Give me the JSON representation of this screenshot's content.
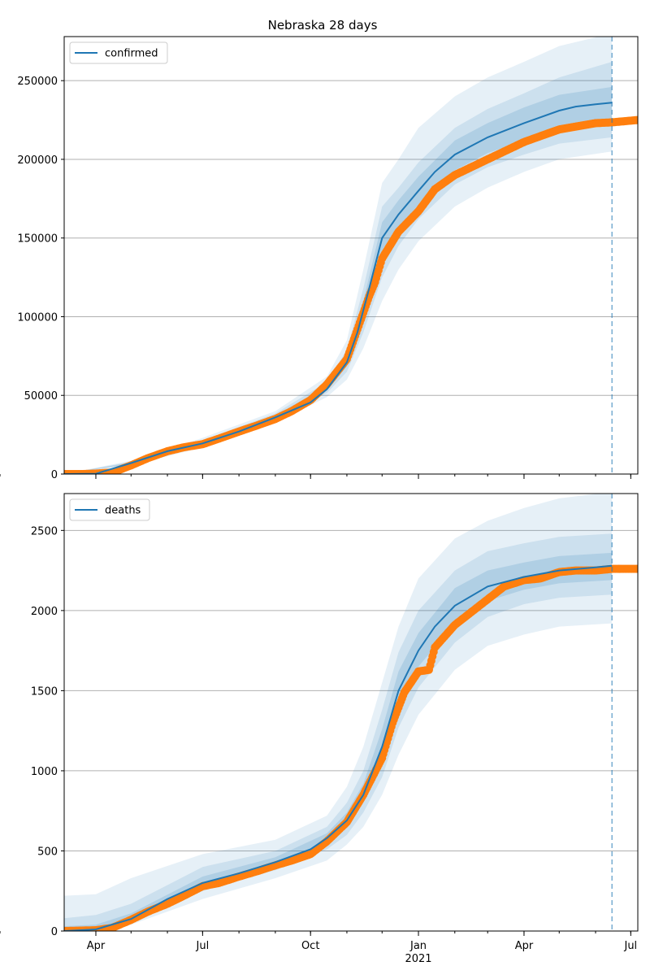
{
  "figure": {
    "title": "Nebraska 28 days"
  },
  "colors": {
    "model": "#1f77b4",
    "observed": "#ff7f0e",
    "grid": "#b0b0b0",
    "band": "#1f77b4"
  },
  "x_axis": {
    "ticks": [
      {
        "date": "2020-04-01",
        "label": "Apr"
      },
      {
        "date": "2020-07-01",
        "label": "Jul"
      },
      {
        "date": "2020-10-01",
        "label": "Oct"
      },
      {
        "date": "2021-01-01",
        "label": "Jan"
      },
      {
        "date": "2021-04-01",
        "label": "Apr"
      },
      {
        "date": "2021-07-01",
        "label": "Jul"
      }
    ],
    "year_label": "2021",
    "minor_ticks_monthly": true
  },
  "chart_data": [
    {
      "type": "line",
      "legend": "confirmed",
      "legend_position": "upper-left",
      "xlim": [
        "2020-03-05",
        "2021-07-07"
      ],
      "ylim": [
        0,
        278000
      ],
      "yticks": [
        0,
        50000,
        100000,
        150000,
        200000,
        250000
      ],
      "grid_y": true,
      "forecast_start": "2021-06-15",
      "model_curve": [
        [
          "2020-03-05",
          0
        ],
        [
          "2020-04-01",
          200
        ],
        [
          "2020-05-01",
          7000
        ],
        [
          "2020-06-01",
          14500
        ],
        [
          "2020-07-01",
          19500
        ],
        [
          "2020-08-01",
          27000
        ],
        [
          "2020-09-01",
          36000
        ],
        [
          "2020-10-01",
          45500
        ],
        [
          "2020-10-15",
          54000
        ],
        [
          "2020-11-01",
          71000
        ],
        [
          "2020-11-10",
          90000
        ],
        [
          "2020-11-20",
          118000
        ],
        [
          "2020-12-01",
          150000
        ],
        [
          "2020-12-15",
          165000
        ],
        [
          "2021-01-01",
          180000
        ],
        [
          "2021-01-15",
          192000
        ],
        [
          "2021-02-01",
          203000
        ],
        [
          "2021-03-01",
          214000
        ],
        [
          "2021-04-01",
          223000
        ],
        [
          "2021-05-01",
          231000
        ],
        [
          "2021-05-15",
          233500
        ],
        [
          "2021-06-01",
          235000
        ],
        [
          "2021-06-15",
          236000
        ]
      ],
      "observed": [
        [
          "2020-03-05",
          0
        ],
        [
          "2020-03-20",
          0
        ],
        [
          "2020-04-01",
          300
        ],
        [
          "2020-04-15",
          1000
        ],
        [
          "2020-05-01",
          5500
        ],
        [
          "2020-05-15",
          10000
        ],
        [
          "2020-06-01",
          14500
        ],
        [
          "2020-06-15",
          17000
        ],
        [
          "2020-07-01",
          19000
        ],
        [
          "2020-07-15",
          22500
        ],
        [
          "2020-08-01",
          27000
        ],
        [
          "2020-08-15",
          30500
        ],
        [
          "2020-09-01",
          35000
        ],
        [
          "2020-09-15",
          40000
        ],
        [
          "2020-10-01",
          47000
        ],
        [
          "2020-10-15",
          57000
        ],
        [
          "2020-11-01",
          73000
        ],
        [
          "2020-11-10",
          92000
        ],
        [
          "2020-11-20",
          113000
        ],
        [
          "2020-11-25",
          122000
        ],
        [
          "2020-12-01",
          137000
        ],
        [
          "2020-12-15",
          154000
        ],
        [
          "2021-01-01",
          167000
        ],
        [
          "2021-01-15",
          181000
        ],
        [
          "2021-02-01",
          190000
        ],
        [
          "2021-03-01",
          200000
        ],
        [
          "2021-04-01",
          211000
        ],
        [
          "2021-05-01",
          219000
        ],
        [
          "2021-06-01",
          223000
        ],
        [
          "2021-06-15",
          223500
        ],
        [
          "2021-07-07",
          225000
        ]
      ],
      "band_outer": [
        [
          "2020-03-05",
          0,
          0
        ],
        [
          "2020-05-01",
          5500,
          8500
        ],
        [
          "2020-07-01",
          17000,
          23000
        ],
        [
          "2020-09-01",
          32500,
          40000
        ],
        [
          "2020-10-15",
          49000,
          62000
        ],
        [
          "2020-11-01",
          60000,
          85000
        ],
        [
          "2020-11-15",
          80000,
          130000
        ],
        [
          "2020-12-01",
          110000,
          185000
        ],
        [
          "2020-12-15",
          130000,
          200000
        ],
        [
          "2021-01-01",
          148000,
          220000
        ],
        [
          "2021-02-01",
          170000,
          240000
        ],
        [
          "2021-03-01",
          182000,
          252000
        ],
        [
          "2021-04-01",
          192000,
          262000
        ],
        [
          "2021-05-01",
          200000,
          272000
        ],
        [
          "2021-06-15",
          205000,
          280000
        ]
      ],
      "band_mid": [
        [
          "2020-03-05",
          0,
          0
        ],
        [
          "2020-05-01",
          6200,
          7800
        ],
        [
          "2020-07-01",
          18200,
          21500
        ],
        [
          "2020-09-01",
          34000,
          38500
        ],
        [
          "2020-10-15",
          51500,
          58500
        ],
        [
          "2020-11-01",
          65000,
          79000
        ],
        [
          "2020-11-15",
          90000,
          118000
        ],
        [
          "2020-12-01",
          125000,
          170000
        ],
        [
          "2020-12-15",
          145000,
          182000
        ],
        [
          "2021-01-01",
          162000,
          198000
        ],
        [
          "2021-02-01",
          184000,
          220000
        ],
        [
          "2021-03-01",
          195000,
          232000
        ],
        [
          "2021-04-01",
          203000,
          242000
        ],
        [
          "2021-05-01",
          210000,
          252000
        ],
        [
          "2021-06-15",
          214000,
          262000
        ]
      ],
      "band_inner": [
        [
          "2020-03-05",
          0,
          0
        ],
        [
          "2020-05-01",
          6600,
          7400
        ],
        [
          "2020-07-01",
          18800,
          20500
        ],
        [
          "2020-09-01",
          35000,
          37200
        ],
        [
          "2020-10-15",
          53000,
          56000
        ],
        [
          "2020-11-01",
          68500,
          74500
        ],
        [
          "2020-11-15",
          97000,
          110000
        ],
        [
          "2020-12-01",
          137000,
          160000
        ],
        [
          "2020-12-15",
          155000,
          174000
        ],
        [
          "2021-01-01",
          171000,
          189000
        ],
        [
          "2021-02-01",
          193000,
          212000
        ],
        [
          "2021-03-01",
          204000,
          223000
        ],
        [
          "2021-04-01",
          212000,
          233000
        ],
        [
          "2021-05-01",
          220000,
          241000
        ],
        [
          "2021-06-15",
          224000,
          246000
        ]
      ]
    },
    {
      "type": "line",
      "legend": "deaths",
      "legend_position": "upper-left",
      "xlim": [
        "2020-03-05",
        "2021-07-07"
      ],
      "ylim": [
        0,
        2730
      ],
      "yticks": [
        0,
        500,
        1000,
        1500,
        2000,
        2500
      ],
      "grid_y": true,
      "forecast_start": "2021-06-15",
      "model_curve": [
        [
          "2020-03-05",
          0
        ],
        [
          "2020-04-01",
          10
        ],
        [
          "2020-05-01",
          75
        ],
        [
          "2020-06-01",
          200
        ],
        [
          "2020-07-01",
          300
        ],
        [
          "2020-08-01",
          360
        ],
        [
          "2020-09-01",
          430
        ],
        [
          "2020-10-01",
          510
        ],
        [
          "2020-10-15",
          580
        ],
        [
          "2020-11-01",
          690
        ],
        [
          "2020-11-15",
          850
        ],
        [
          "2020-12-01",
          1150
        ],
        [
          "2020-12-15",
          1500
        ],
        [
          "2021-01-01",
          1750
        ],
        [
          "2021-01-15",
          1900
        ],
        [
          "2021-02-01",
          2030
        ],
        [
          "2021-03-01",
          2150
        ],
        [
          "2021-04-01",
          2210
        ],
        [
          "2021-05-01",
          2250
        ],
        [
          "2021-06-01",
          2270
        ],
        [
          "2021-06-15",
          2280
        ]
      ],
      "observed": [
        [
          "2020-03-05",
          0
        ],
        [
          "2020-04-01",
          5
        ],
        [
          "2020-04-15",
          20
        ],
        [
          "2020-05-01",
          70
        ],
        [
          "2020-05-15",
          120
        ],
        [
          "2020-06-01",
          170
        ],
        [
          "2020-06-15",
          220
        ],
        [
          "2020-07-01",
          280
        ],
        [
          "2020-07-15",
          300
        ],
        [
          "2020-08-01",
          340
        ],
        [
          "2020-08-15",
          370
        ],
        [
          "2020-09-01",
          410
        ],
        [
          "2020-09-15",
          440
        ],
        [
          "2020-10-01",
          480
        ],
        [
          "2020-10-15",
          560
        ],
        [
          "2020-11-01",
          680
        ],
        [
          "2020-11-15",
          850
        ],
        [
          "2020-12-01",
          1080
        ],
        [
          "2020-12-10",
          1300
        ],
        [
          "2020-12-20",
          1490
        ],
        [
          "2021-01-01",
          1620
        ],
        [
          "2021-01-10",
          1630
        ],
        [
          "2021-01-15",
          1770
        ],
        [
          "2021-02-01",
          1910
        ],
        [
          "2021-02-15",
          1990
        ],
        [
          "2021-03-01",
          2070
        ],
        [
          "2021-03-15",
          2150
        ],
        [
          "2021-04-01",
          2190
        ],
        [
          "2021-04-15",
          2200
        ],
        [
          "2021-05-01",
          2240
        ],
        [
          "2021-05-15",
          2250
        ],
        [
          "2021-06-01",
          2250
        ],
        [
          "2021-06-15",
          2260
        ],
        [
          "2021-07-07",
          2260
        ]
      ],
      "band_outer": [
        [
          "2020-03-05",
          0,
          220
        ],
        [
          "2020-04-01",
          0,
          230
        ],
        [
          "2020-05-01",
          40,
          330
        ],
        [
          "2020-07-01",
          200,
          480
        ],
        [
          "2020-09-01",
          330,
          570
        ],
        [
          "2020-10-15",
          440,
          720
        ],
        [
          "2020-11-01",
          540,
          900
        ],
        [
          "2020-11-15",
          650,
          1150
        ],
        [
          "2020-12-01",
          850,
          1550
        ],
        [
          "2020-12-15",
          1100,
          1900
        ],
        [
          "2021-01-01",
          1350,
          2200
        ],
        [
          "2021-02-01",
          1630,
          2450
        ],
        [
          "2021-03-01",
          1780,
          2560
        ],
        [
          "2021-04-01",
          1850,
          2640
        ],
        [
          "2021-05-01",
          1900,
          2700
        ],
        [
          "2021-06-15",
          1920,
          2740
        ]
      ],
      "band_mid": [
        [
          "2020-03-05",
          0,
          80
        ],
        [
          "2020-04-01",
          0,
          100
        ],
        [
          "2020-05-01",
          55,
          170
        ],
        [
          "2020-07-01",
          250,
          400
        ],
        [
          "2020-09-01",
          380,
          500
        ],
        [
          "2020-10-15",
          510,
          650
        ],
        [
          "2020-11-01",
          600,
          800
        ],
        [
          "2020-11-15",
          740,
          1000
        ],
        [
          "2020-12-01",
          960,
          1380
        ],
        [
          "2020-12-15",
          1270,
          1740
        ],
        [
          "2021-01-01",
          1520,
          2000
        ],
        [
          "2021-02-01",
          1800,
          2250
        ],
        [
          "2021-03-01",
          1960,
          2370
        ],
        [
          "2021-04-01",
          2040,
          2420
        ],
        [
          "2021-05-01",
          2080,
          2460
        ],
        [
          "2021-06-15",
          2100,
          2480
        ]
      ],
      "band_inner": [
        [
          "2020-03-05",
          0,
          30
        ],
        [
          "2020-04-01",
          0,
          40
        ],
        [
          "2020-05-01",
          65,
          110
        ],
        [
          "2020-07-01",
          280,
          340
        ],
        [
          "2020-09-01",
          410,
          460
        ],
        [
          "2020-10-15",
          550,
          610
        ],
        [
          "2020-11-01",
          650,
          740
        ],
        [
          "2020-11-15",
          800,
          920
        ],
        [
          "2020-12-01",
          1060,
          1260
        ],
        [
          "2020-12-15",
          1390,
          1620
        ],
        [
          "2021-01-01",
          1650,
          1860
        ],
        [
          "2021-02-01",
          1920,
          2140
        ],
        [
          "2021-03-01",
          2060,
          2250
        ],
        [
          "2021-04-01",
          2130,
          2300
        ],
        [
          "2021-05-01",
          2170,
          2340
        ],
        [
          "2021-06-15",
          2190,
          2360
        ]
      ]
    }
  ]
}
